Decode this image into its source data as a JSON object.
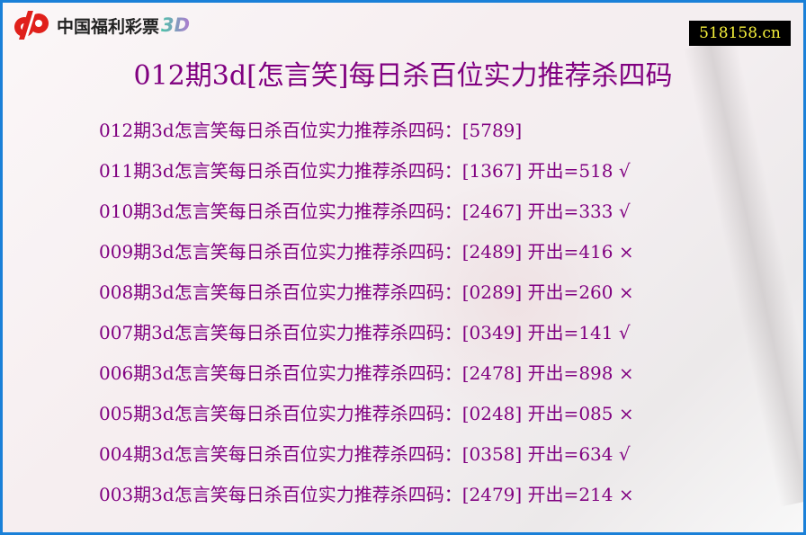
{
  "logo": {
    "text": "中国福利彩票",
    "suffix": "3D"
  },
  "site": "518158.cn",
  "title": "012期3d[怎言笑]每日杀百位实力推荐杀四码",
  "colors": {
    "border": "#1a80d8",
    "text": "#800080",
    "logo_red": "#e0201b",
    "site_bg": "#000000",
    "site_text": "#f5f03a"
  },
  "rows": [
    {
      "text": "012期3d怎言笑每日杀百位实力推荐杀四码：[5789]"
    },
    {
      "text": "011期3d怎言笑每日杀百位实力推荐杀四码：[1367] 开出=518 √"
    },
    {
      "text": "010期3d怎言笑每日杀百位实力推荐杀四码：[2467] 开出=333 √"
    },
    {
      "text": "009期3d怎言笑每日杀百位实力推荐杀四码：[2489] 开出=416 ×"
    },
    {
      "text": "008期3d怎言笑每日杀百位实力推荐杀四码：[0289] 开出=260 ×"
    },
    {
      "text": "007期3d怎言笑每日杀百位实力推荐杀四码：[0349] 开出=141 √"
    },
    {
      "text": "006期3d怎言笑每日杀百位实力推荐杀四码：[2478] 开出=898 ×"
    },
    {
      "text": "005期3d怎言笑每日杀百位实力推荐杀四码：[0248] 开出=085 ×"
    },
    {
      "text": "004期3d怎言笑每日杀百位实力推荐杀四码：[0358] 开出=634 √"
    },
    {
      "text": "003期3d怎言笑每日杀百位实力推荐杀四码：[2479] 开出=214 ×"
    }
  ]
}
